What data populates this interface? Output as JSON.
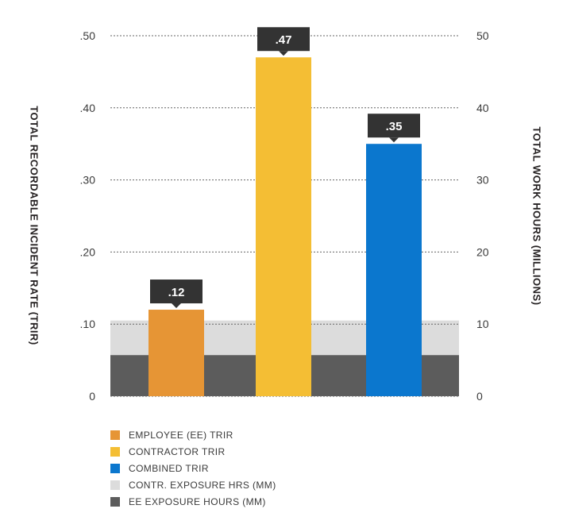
{
  "chart_data": {
    "type": "bar",
    "ylabel": "TOTAL RECORDABLE INCIDENT RATE (TRIR)",
    "y2label": "TOTAL WORK HOURS (MILLIONS)",
    "ylim": [
      0,
      0.5
    ],
    "y2lim": [
      0,
      50
    ],
    "yticks": [
      ".50",
      ".40",
      ".30",
      ".20",
      ".10",
      "0"
    ],
    "y2ticks": [
      "50",
      "40",
      "30",
      "20",
      "10",
      "0"
    ],
    "grid": "dashed-horizontal",
    "series": [
      {
        "name": "EMPLOYEE (EE) TRIR",
        "value": 0.12,
        "label": ".12",
        "color": "#e69535"
      },
      {
        "name": "CONTRACTOR TRIR",
        "value": 0.47,
        "label": ".47",
        "color": "#f4be34"
      },
      {
        "name": "COMBINED TRIR",
        "value": 0.35,
        "label": ".35",
        "color": "#0b77ce"
      }
    ],
    "exposure": [
      {
        "name": "CONTR. EXPOSURE HRS (MM)",
        "value": 10.5,
        "color": "#dcdcdc"
      },
      {
        "name": "EE EXPOSURE HOURS (MM)",
        "value": 5.7,
        "color": "#5c5c5c"
      }
    ],
    "callout_color": "#333333",
    "legend": "bottom-left"
  }
}
